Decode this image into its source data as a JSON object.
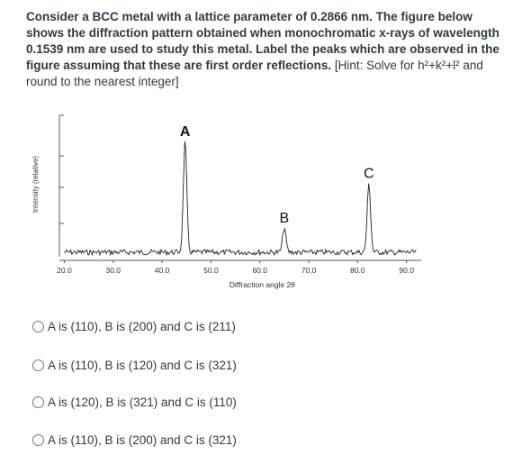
{
  "question": {
    "bold_text": "Consider a BCC metal with a lattice parameter of 0.2866 nm.  The figure below shows the diffraction pattern obtained when monochromatic x-rays of wavelength 0.1539 nm are used to study this metal.  Label the peaks which are observed in the figure assuming that these are first order reflections.",
    "hint_text": " [Hint:  Solve for h²+k²+l² and round to the nearest integer]"
  },
  "chart_data": {
    "type": "line",
    "xlabel": "Diffraction angle 2θ",
    "ylabel": "Intensity (relative)",
    "xlim": [
      19,
      93
    ],
    "x_ticks": [
      "20.0",
      "30.0",
      "40.0",
      "50.0",
      "60.0",
      "70.0",
      "80.0",
      "90.0"
    ],
    "tick_values": [
      20,
      30,
      40,
      50,
      60,
      70,
      80,
      90
    ],
    "peaks": [
      {
        "label": "A",
        "x": 44.7,
        "relative_intensity": 100
      },
      {
        "label": "B",
        "x": 65.0,
        "relative_intensity": 22
      },
      {
        "label": "C",
        "x": 82.3,
        "relative_intensity": 62
      }
    ],
    "grid": false
  },
  "options": [
    {
      "label": "A is (110), B is (200) and C is (211)"
    },
    {
      "label": "A is (110), B is (120) and C is (321)"
    },
    {
      "label": "A is (120), B is (321) and C is (110)"
    },
    {
      "label": "A is (110), B is (200) and C is (321)"
    }
  ]
}
